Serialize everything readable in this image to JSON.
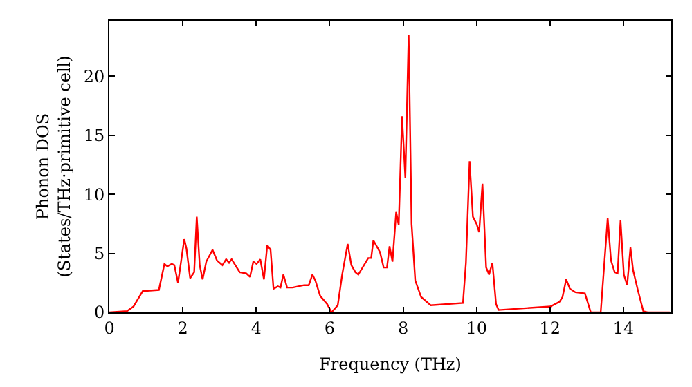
{
  "chart_data": {
    "type": "line",
    "xlabel": "Frequency (THz)",
    "ylabel": "Phonon DOS\n(States/THz·primitive cell)",
    "xlim": [
      0,
      15.3
    ],
    "xticks": [
      0,
      2,
      4,
      6,
      8,
      10,
      12,
      14
    ],
    "ylim": [
      0,
      24.7
    ],
    "yticks": [
      0,
      5,
      10,
      15,
      20
    ],
    "marker": "none",
    "line_style": "solid",
    "series": [
      {
        "color": "#ff0000",
        "x": [
          0,
          0.48,
          0.66,
          0.91,
          1.35,
          1.5,
          1.58,
          1.7,
          1.77,
          1.87,
          2.04,
          2.1,
          2.2,
          2.31,
          2.38,
          2.46,
          2.54,
          2.64,
          2.81,
          2.93,
          3.08,
          3.18,
          3.26,
          3.33,
          3.55,
          3.73,
          3.83,
          3.92,
          4.01,
          4.11,
          4.21,
          4.3,
          4.39,
          4.47,
          4.59,
          4.66,
          4.74,
          4.84,
          4.99,
          5.3,
          5.43,
          5.53,
          5.61,
          5.74,
          5.93,
          6.05,
          6.22,
          6.34,
          6.49,
          6.59,
          6.7,
          6.78,
          7.05,
          7.13,
          7.19,
          7.37,
          7.47,
          7.56,
          7.63,
          7.71,
          7.81,
          7.88,
          7.97,
          8.06,
          8.15,
          8.23,
          8.33,
          8.49,
          8.75,
          9.63,
          9.71,
          9.81,
          9.9,
          10.0,
          10.07,
          10.16,
          10.26,
          10.34,
          10.43,
          10.53,
          10.6,
          12.01,
          12.26,
          12.34,
          12.44,
          12.54,
          12.69,
          12.95,
          13.11,
          13.38,
          13.57,
          13.66,
          13.76,
          13.84,
          13.92,
          14.01,
          14.1,
          14.19,
          14.26,
          14.39,
          14.54,
          14.66,
          15.26
        ],
        "values": [
          0,
          0.1,
          0.5,
          1.8,
          1.9,
          4.1,
          3.9,
          4.1,
          4.0,
          2.5,
          6.2,
          5.4,
          2.9,
          3.4,
          8.1,
          4.0,
          2.8,
          4.3,
          5.3,
          4.4,
          4.0,
          4.5,
          4.2,
          4.5,
          3.4,
          3.3,
          3.0,
          4.3,
          4.1,
          4.5,
          2.8,
          5.7,
          5.3,
          2.0,
          2.2,
          2.1,
          3.2,
          2.1,
          2.1,
          2.3,
          2.3,
          3.2,
          2.7,
          1.4,
          0.7,
          0,
          0.6,
          3.2,
          5.8,
          4.0,
          3.4,
          3.2,
          4.6,
          4.6,
          6.1,
          5.1,
          3.8,
          3.8,
          5.6,
          4.3,
          8.5,
          7.4,
          16.6,
          11.4,
          23.5,
          7.5,
          2.7,
          1.3,
          0.6,
          0.8,
          4.2,
          12.8,
          8.1,
          7.5,
          6.8,
          10.9,
          3.8,
          3.2,
          4.2,
          0.7,
          0.2,
          0.5,
          0.9,
          1.3,
          2.8,
          2.0,
          1.7,
          1.6,
          0,
          0,
          8.0,
          4.4,
          3.4,
          3.3,
          7.8,
          3.2,
          2.3,
          5.5,
          3.6,
          1.9,
          0.1,
          0,
          0
        ]
      }
    ]
  }
}
